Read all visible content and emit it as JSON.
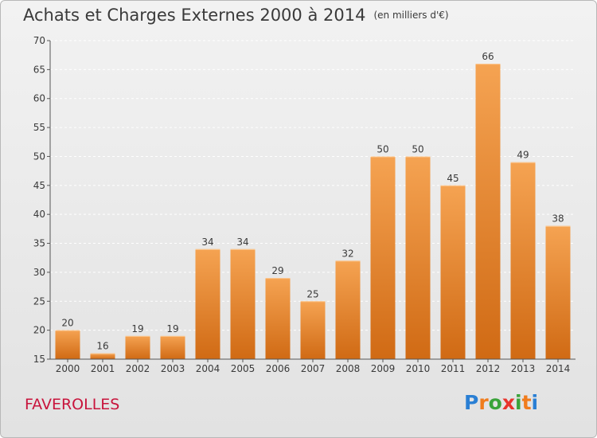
{
  "title": "Achats et Charges Externes 2000 à 2014",
  "unit_label": "(en milliers d'€)",
  "location": "FAVEROLLES",
  "logo": {
    "letters": [
      "P",
      "r",
      "o",
      "x",
      "i",
      "t",
      "i"
    ],
    "colors": [
      "#2a7fd4",
      "#f07c1c",
      "#3aa33a",
      "#e8342c",
      "#3aa33a",
      "#f07c1c",
      "#2a7fd4"
    ]
  },
  "colors": {
    "bar_top": "#f5a352",
    "bar_bottom": "#d06a14",
    "grid": "#ffffff",
    "axis": "#555555"
  },
  "chart_data": {
    "type": "bar",
    "categories": [
      "2000",
      "2001",
      "2002",
      "2003",
      "2004",
      "2005",
      "2006",
      "2007",
      "2008",
      "2009",
      "2010",
      "2011",
      "2012",
      "2013",
      "2014"
    ],
    "values": [
      20,
      16,
      19,
      19,
      34,
      34,
      29,
      25,
      32,
      50,
      50,
      45,
      66,
      49,
      38
    ],
    "yticks": [
      15,
      20,
      25,
      30,
      35,
      40,
      45,
      50,
      55,
      60,
      65,
      70
    ],
    "ylim": [
      15,
      70
    ],
    "grid": true,
    "data_labels": true
  }
}
